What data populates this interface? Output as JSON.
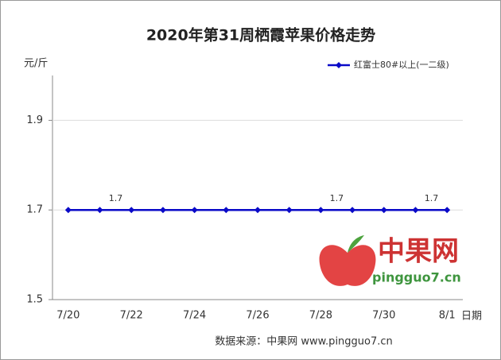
{
  "chart_data": {
    "type": "line",
    "title": "2020年第31周栖霞苹果价格走势",
    "y_label": "元/斤",
    "x_label": "日期",
    "categories": [
      "7/20",
      null,
      "7/22",
      null,
      "7/24",
      null,
      "7/26",
      null,
      "7/28",
      null,
      "7/30",
      null,
      "8/1"
    ],
    "series": [
      {
        "name": "红富士80#以上(一二级)",
        "color": "#0a0ac8",
        "values": [
          1.7,
          1.7,
          1.7,
          1.7,
          1.7,
          1.7,
          1.7,
          1.7,
          1.7,
          1.7,
          1.7,
          1.7,
          1.7
        ],
        "value_labels": [
          null,
          "1.7",
          null,
          null,
          null,
          null,
          null,
          null,
          "1.7",
          null,
          null,
          "1.7",
          null
        ]
      }
    ],
    "ylim": [
      1.5,
      2.0
    ],
    "yticks": [
      1.5,
      1.7,
      1.9
    ],
    "grid": true,
    "legend": "top-right",
    "source": "数据来源：中果网 www.pingguo7.cn",
    "watermark_name": "中果网",
    "watermark_url": "pingguo7.cn"
  }
}
